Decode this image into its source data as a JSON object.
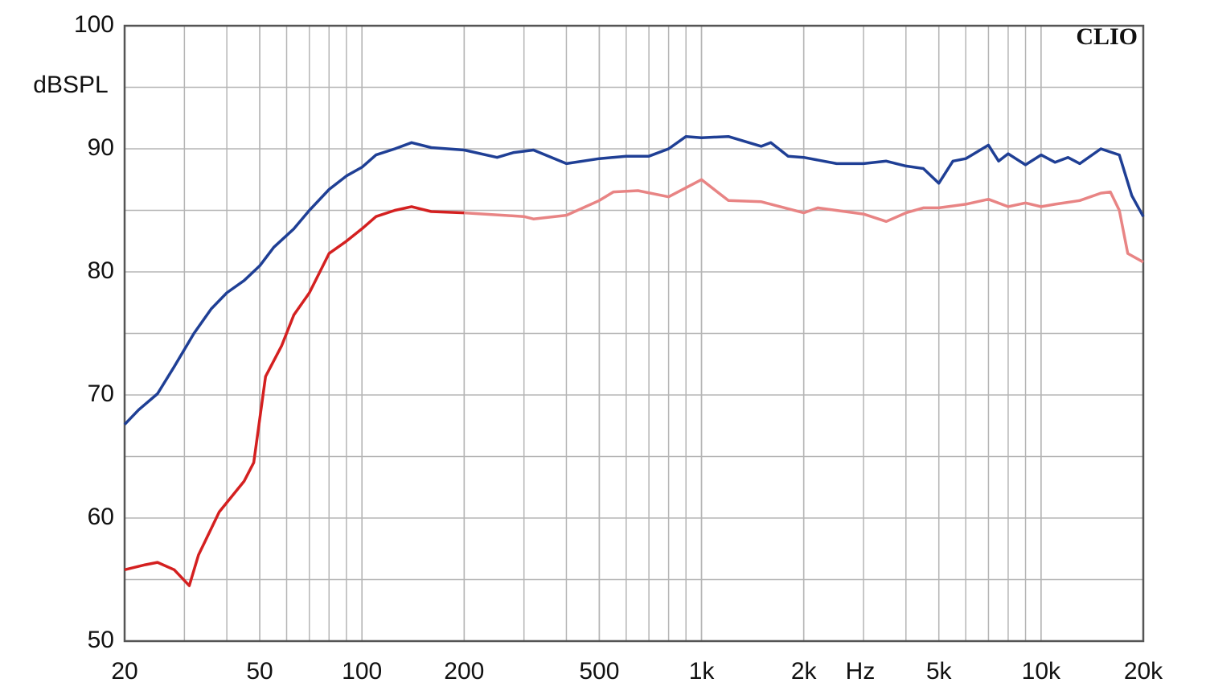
{
  "chart_data": {
    "type": "line",
    "y_label": "dBSPL",
    "x_label": "Hz",
    "annotation": "CLIO",
    "log_x": true,
    "grid": true,
    "xlim": [
      20,
      20000
    ],
    "ylim": [
      50,
      100
    ],
    "xticks": [
      20,
      50,
      100,
      200,
      500,
      {
        "value": 1000,
        "label": "1k"
      },
      {
        "value": 2000,
        "label": "2k"
      },
      {
        "value": 5000,
        "label": "5k"
      },
      {
        "value": 10000,
        "label": "10k"
      },
      {
        "value": 20000,
        "label": "20k"
      }
    ],
    "yticks": [
      50,
      60,
      70,
      80,
      90,
      100
    ],
    "series": [
      {
        "color": "#1f3f95",
        "x": [
          20,
          22,
          25,
          28,
          32,
          36,
          40,
          45,
          50,
          55,
          63,
          70,
          80,
          90,
          100,
          110,
          125,
          140,
          160,
          200,
          250,
          280,
          320,
          400,
          500,
          600,
          700,
          800,
          900,
          1000,
          1200,
          1500,
          1600,
          1800,
          2000,
          2500,
          3000,
          3500,
          4000,
          4500,
          5000,
          5500,
          6000,
          7000,
          7500,
          8000,
          9000,
          10000,
          11000,
          12000,
          13000,
          15000,
          17000,
          18500,
          20000
        ],
        "values": [
          67.6,
          68.8,
          70.1,
          72.3,
          75.0,
          77.0,
          78.3,
          79.3,
          80.5,
          82.0,
          83.5,
          85.0,
          86.7,
          87.8,
          88.5,
          89.5,
          90.0,
          90.5,
          90.1,
          89.9,
          89.3,
          89.7,
          89.9,
          88.8,
          89.2,
          89.4,
          89.4,
          90.0,
          91.0,
          90.9,
          91.0,
          90.2,
          90.5,
          89.4,
          89.3,
          88.8,
          88.8,
          89.0,
          88.6,
          88.4,
          87.2,
          89.0,
          89.2,
          90.3,
          89.0,
          89.6,
          88.7,
          89.5,
          88.9,
          89.3,
          88.8,
          90.0,
          89.5,
          86.2,
          84.5
        ]
      },
      {
        "color": "#d42020",
        "x": [
          20,
          23,
          25,
          28,
          31,
          33,
          38,
          45,
          48,
          52,
          58,
          63,
          70,
          80,
          90,
          100,
          110,
          125,
          140,
          160,
          200
        ],
        "values": [
          55.8,
          56.2,
          56.4,
          55.8,
          54.5,
          57.0,
          60.5,
          63.0,
          64.5,
          71.5,
          74.0,
          76.5,
          78.3,
          81.5,
          82.5,
          83.5,
          84.5,
          85.0,
          85.3,
          84.9,
          84.8
        ]
      },
      {
        "color": "#e88484",
        "x": [
          200,
          300,
          320,
          400,
          500,
          550,
          650,
          800,
          1000,
          1200,
          1500,
          2000,
          2200,
          3000,
          3500,
          4000,
          4500,
          5000,
          6000,
          7000,
          8000,
          9000,
          10000,
          11000,
          13000,
          15000,
          16000,
          17000,
          18000,
          20000
        ],
        "values": [
          84.8,
          84.5,
          84.3,
          84.6,
          85.8,
          86.5,
          86.6,
          86.1,
          87.5,
          85.8,
          85.7,
          84.8,
          85.2,
          84.7,
          84.1,
          84.8,
          85.2,
          85.2,
          85.5,
          85.9,
          85.3,
          85.6,
          85.3,
          85.5,
          85.8,
          86.4,
          86.5,
          85.0,
          81.5,
          80.8
        ]
      }
    ]
  }
}
